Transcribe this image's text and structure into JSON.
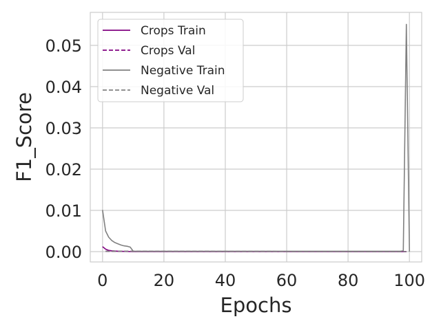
{
  "chart_data": {
    "type": "line",
    "title": "",
    "xlabel": "Epochs",
    "ylabel": "F1_Score",
    "xlim": [
      -4,
      104
    ],
    "ylim": [
      -0.0025,
      0.058
    ],
    "xticks": [
      0,
      20,
      40,
      60,
      80,
      100
    ],
    "yticks": [
      0.0,
      0.01,
      0.02,
      0.03,
      0.04,
      0.05
    ],
    "xtick_labels": [
      "0",
      "20",
      "40",
      "60",
      "80",
      "100"
    ],
    "ytick_labels": [
      "0.00",
      "0.01",
      "0.02",
      "0.03",
      "0.04",
      "0.05"
    ],
    "grid": true,
    "legend_position": "top-left",
    "series": [
      {
        "name": "Crops Train",
        "color": "#800080",
        "dash": "solid",
        "points": [
          [
            0,
            0.0012
          ],
          [
            1,
            0.0006
          ],
          [
            2,
            0.0003
          ],
          [
            3,
            0.0002
          ],
          [
            5,
            0.0001
          ],
          [
            10,
            0.0
          ],
          [
            99,
            0.0
          ]
        ]
      },
      {
        "name": "Crops Val",
        "color": "#800080",
        "dash": "dashed",
        "points": [
          [
            1,
            0.0001
          ],
          [
            99,
            0.0
          ]
        ]
      },
      {
        "name": "Negative Train",
        "color": "#808080",
        "dash": "solid",
        "points": [
          [
            0,
            0.0101
          ],
          [
            1,
            0.005
          ],
          [
            2,
            0.0035
          ],
          [
            3,
            0.0027
          ],
          [
            4,
            0.0022
          ],
          [
            5,
            0.0019
          ],
          [
            6,
            0.0016
          ],
          [
            7,
            0.0014
          ],
          [
            8,
            0.0013
          ],
          [
            9,
            0.0011
          ],
          [
            10,
            0.0001
          ],
          [
            97,
            0.0001
          ],
          [
            98,
            0.0002
          ],
          [
            99,
            0.0551
          ],
          [
            100,
            0.0
          ]
        ]
      },
      {
        "name": "Negative Val",
        "color": "#808080",
        "dash": "dashed",
        "points": [
          [
            1,
            0.0001
          ],
          [
            99,
            0.0
          ]
        ]
      }
    ]
  }
}
